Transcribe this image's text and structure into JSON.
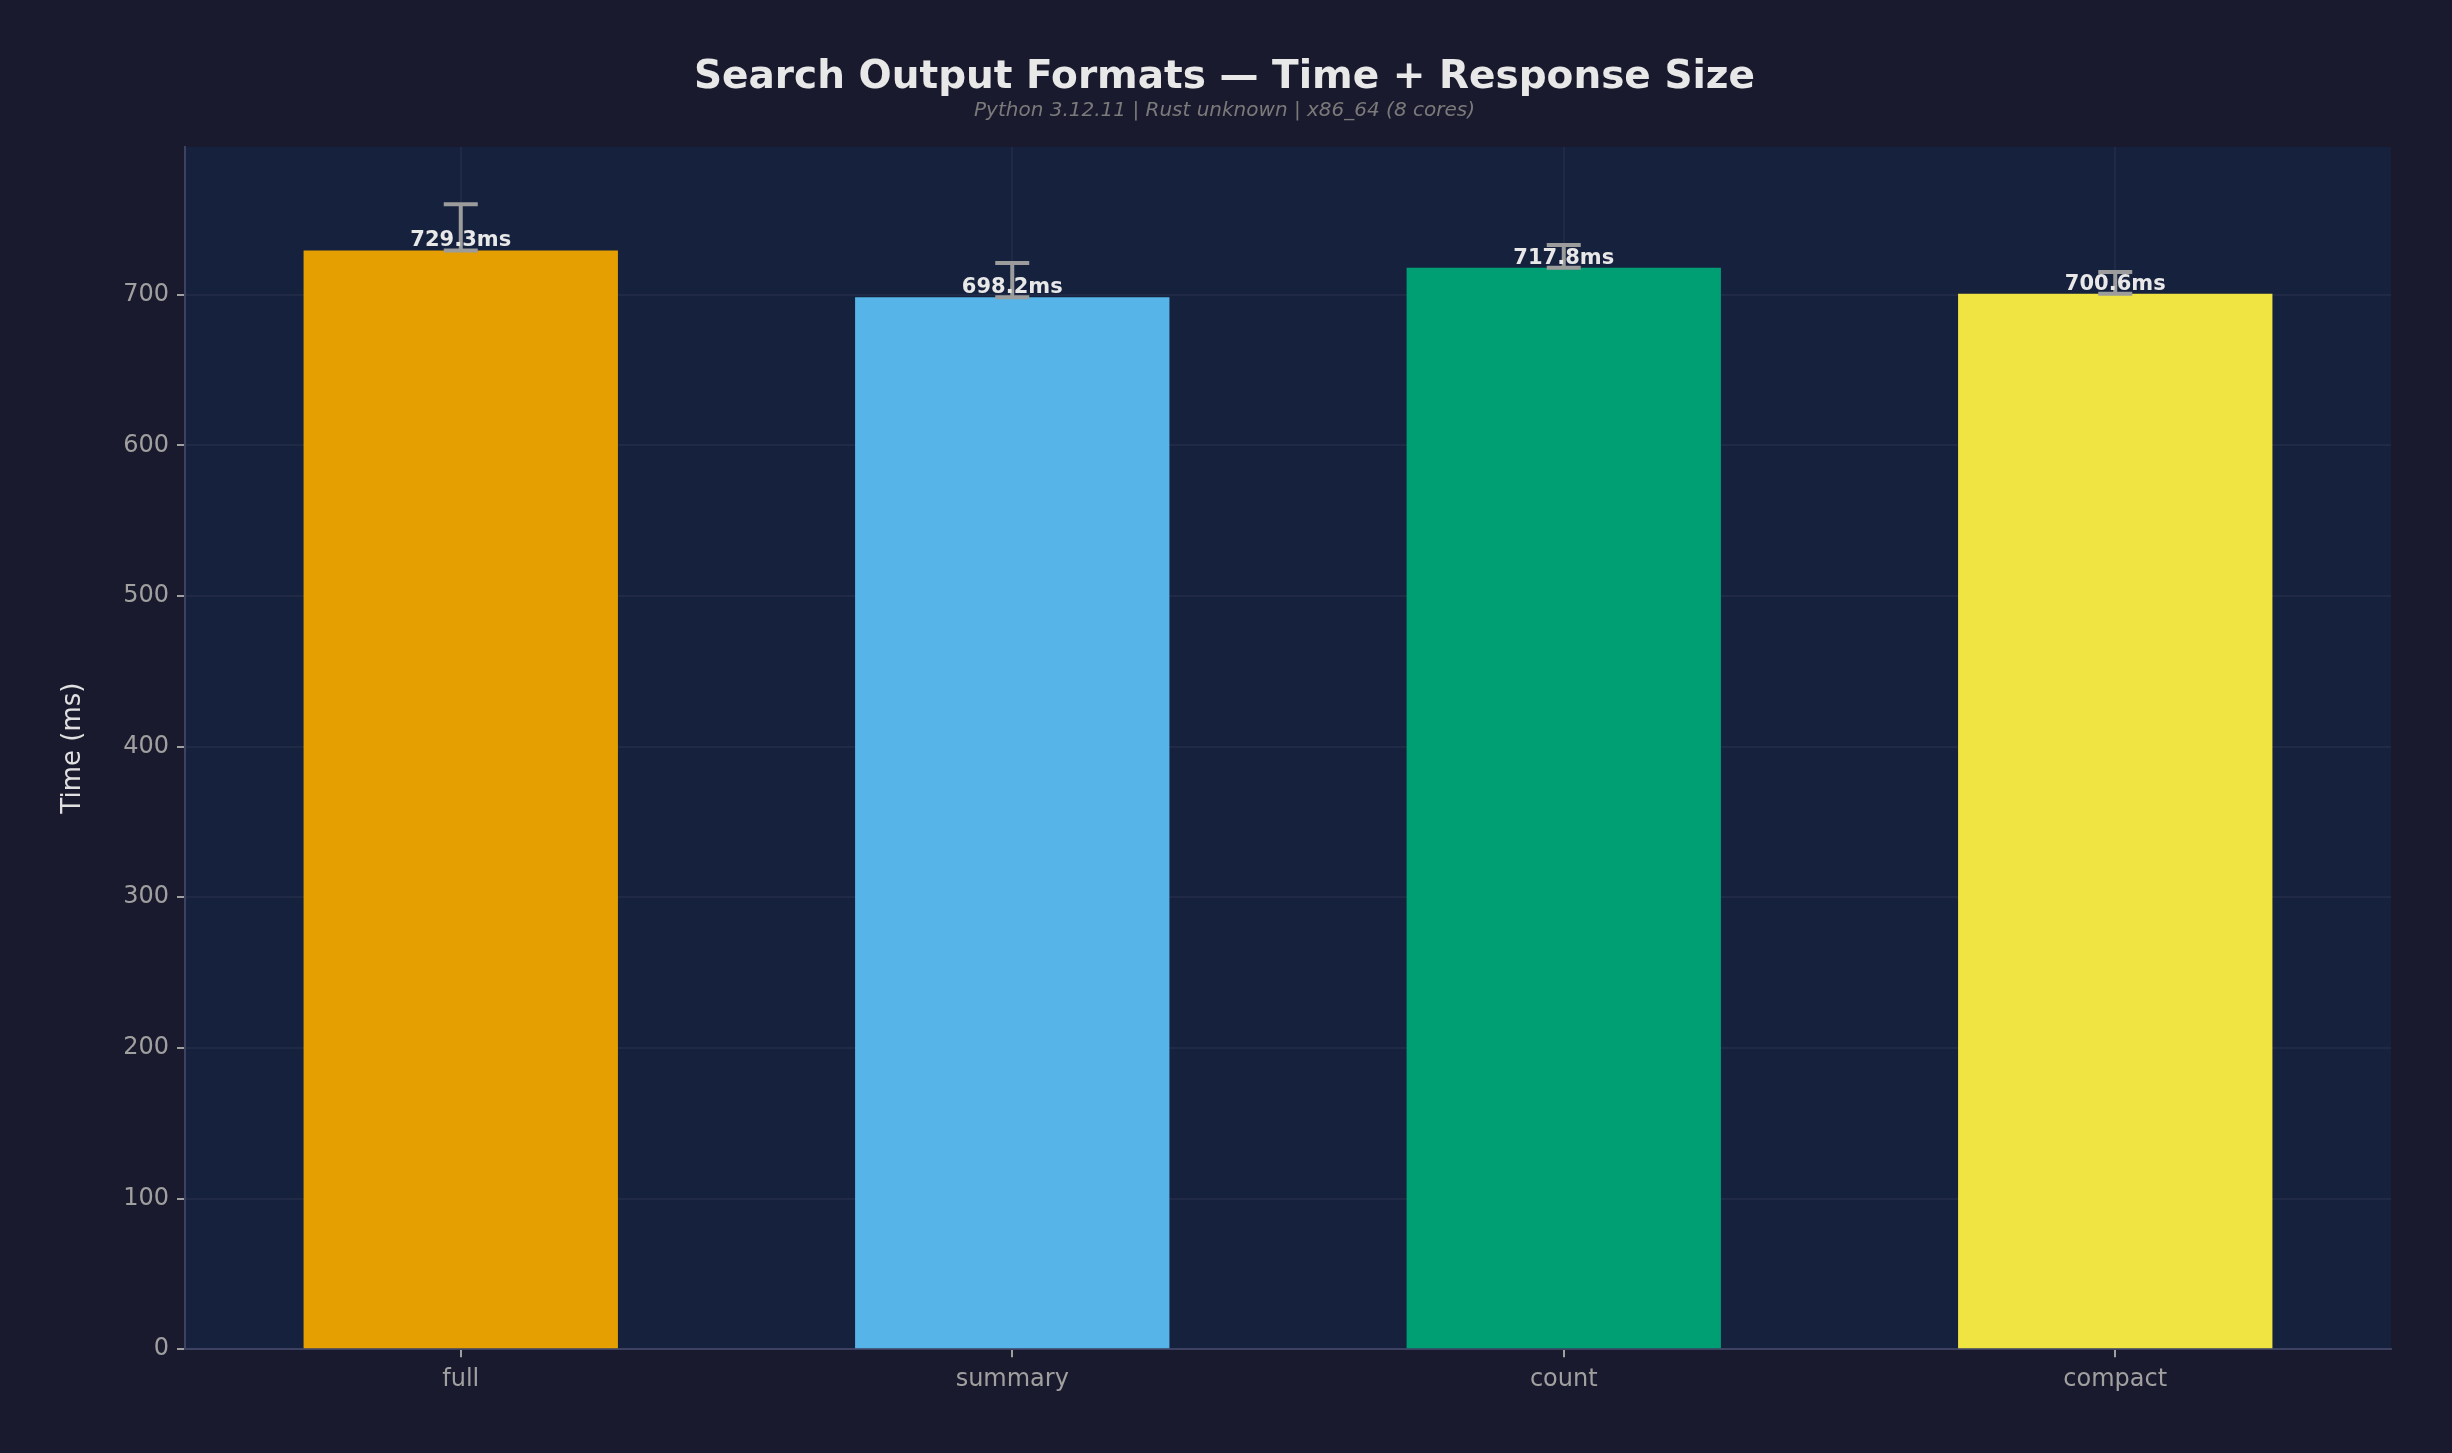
{
  "chart_data": {
    "type": "bar",
    "title": "Search Output Formats — Time + Response Size",
    "subtitle": "Python 3.12.11 | Rust unknown | x86_64 (8 cores)",
    "ylabel": "Time (ms)",
    "categories": [
      "full",
      "summary",
      "count",
      "compact"
    ],
    "values": [
      729.3,
      698.2,
      717.8,
      700.6
    ],
    "colors": [
      "#e69f00",
      "#56b4e9",
      "#009e73",
      "#f0e442"
    ],
    "errors": [
      [
        729.3,
        760
      ],
      [
        698.2,
        721
      ],
      [
        717.8,
        733
      ],
      [
        700.6,
        715
      ]
    ],
    "value_labels": [
      "729.3ms",
      "698.2ms",
      "717.8ms",
      "700.6ms"
    ],
    "ylim": [
      0,
      798
    ],
    "yticks": [
      0,
      100,
      200,
      300,
      400,
      500,
      600,
      700
    ],
    "grid": true
  }
}
